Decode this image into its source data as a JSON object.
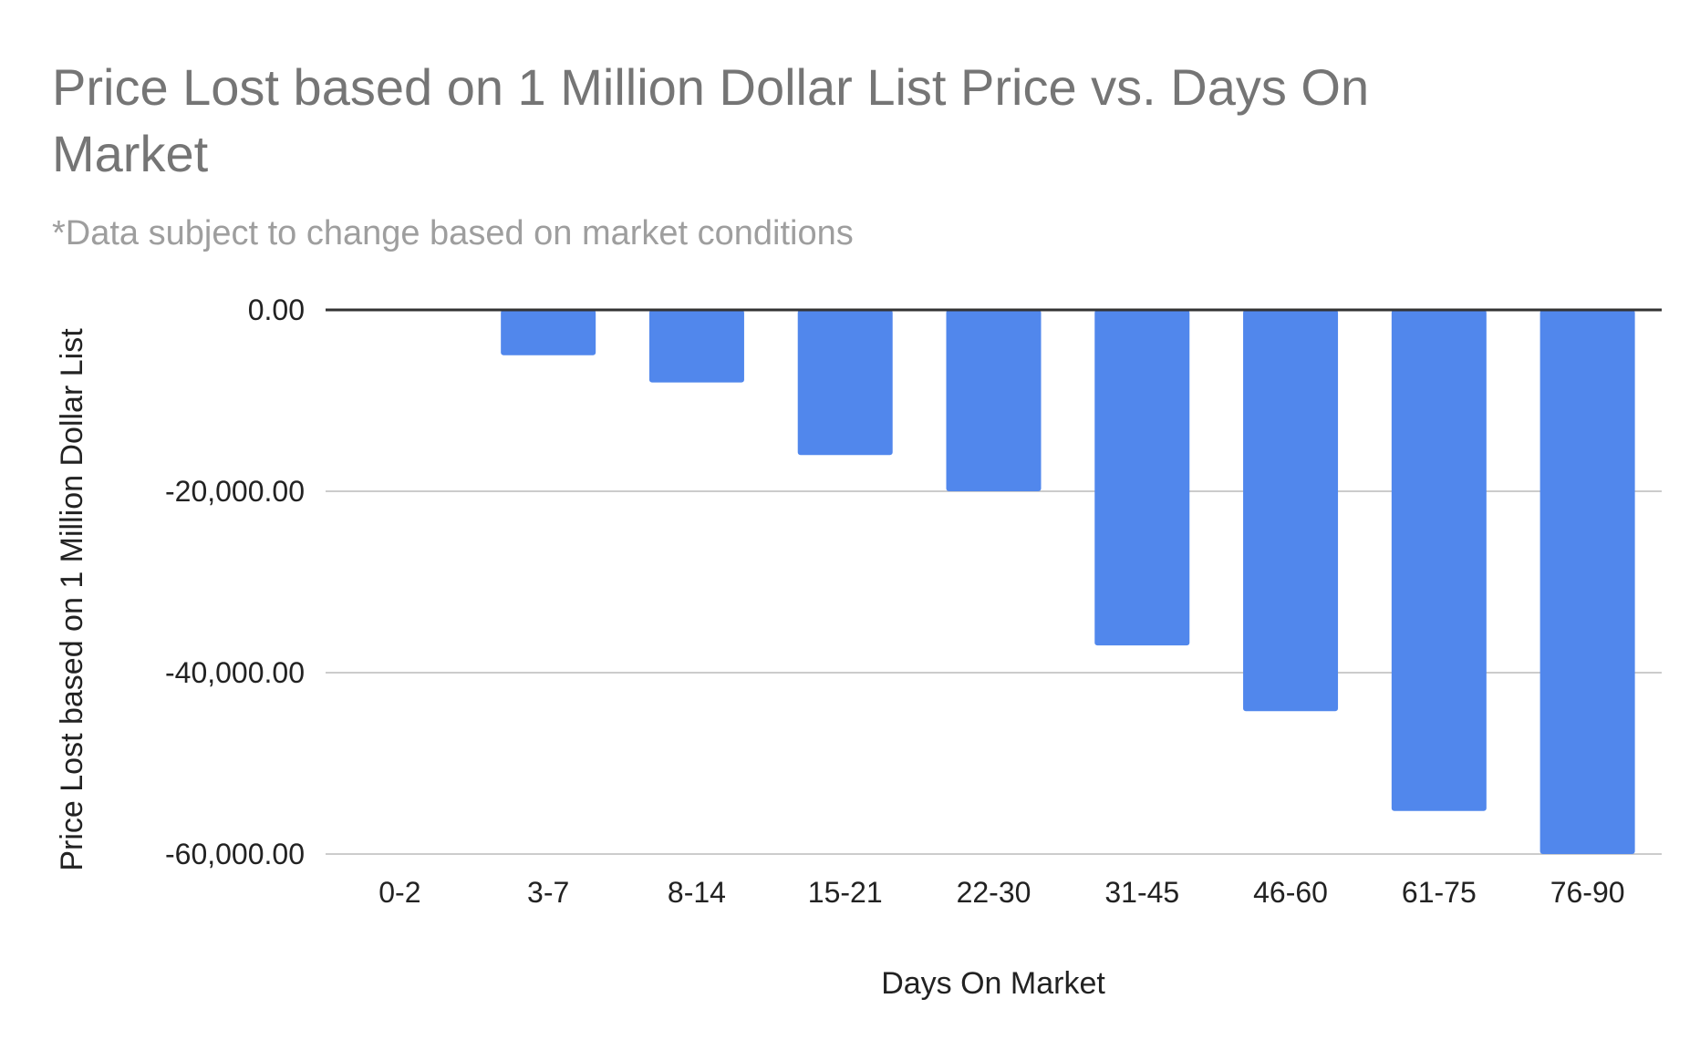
{
  "chart_data": {
    "type": "bar",
    "title_lines": [
      "Price Lost based on 1 Million Dollar List Price vs. Days On",
      "Market"
    ],
    "subtitle": "*Data subject to change based on market conditions",
    "xlabel": "Days On Market",
    "ylabel": "Price Lost based on 1 Million Dollar List",
    "categories": [
      "0-2",
      "3-7",
      "8-14",
      "15-21",
      "22-30",
      "31-45",
      "46-60",
      "61-75",
      "76-90"
    ],
    "values": [
      0,
      -5000,
      -8000,
      -16000,
      -20000,
      -37000,
      -44250,
      -55250,
      -60000
    ],
    "ylim": [
      -60000,
      0
    ],
    "yticks": [
      0,
      -20000,
      -40000,
      -60000
    ],
    "ytick_labels": [
      "0.00",
      "-20,000.00",
      "-40,000.00",
      "-60,000.00"
    ],
    "bar_color": "#5187ec",
    "grid": true,
    "legend": "none"
  }
}
